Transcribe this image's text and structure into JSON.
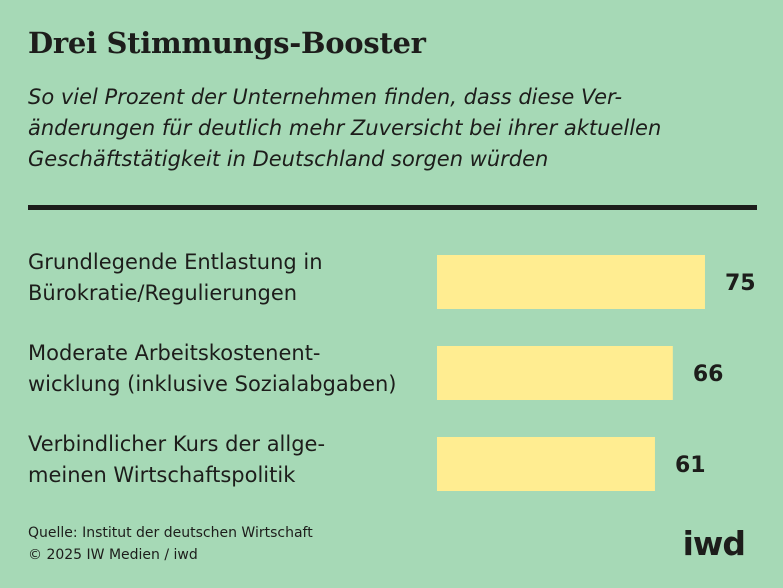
{
  "chart_data": {
    "type": "bar",
    "orientation": "horizontal",
    "title": "Drei Stimmungs-Booster",
    "subtitle_lines": [
      "So viel Prozent der Unternehmen finden, dass diese Ver-",
      "änderungen für deutlich mehr Zuversicht bei ihrer aktuellen",
      "Geschäftstätigkeit in Deutschland sorgen würden"
    ],
    "categories": [
      [
        "Grundlegende Entlastung in",
        "Bürokratie/Regulierungen"
      ],
      [
        "Moderate Arbeitskostenent-",
        "wicklung (inklusive Sozialabgaben)"
      ],
      [
        "Verbindlicher Kurs der allge-",
        "meinen Wirtschaftspolitik"
      ]
    ],
    "values": [
      75,
      66,
      61
    ],
    "data_labels": [
      "75",
      "66",
      "61"
    ],
    "xlim": [
      0,
      100
    ],
    "grid": false,
    "legend": "none",
    "bar_color": "#ffed91",
    "background_color": "#a6d9b6"
  },
  "footer": {
    "source": "Quelle: Institut der deutschen Wirtschaft",
    "copyright": "© 2025 IW Medien / iwd"
  },
  "logo_text": "iwd"
}
